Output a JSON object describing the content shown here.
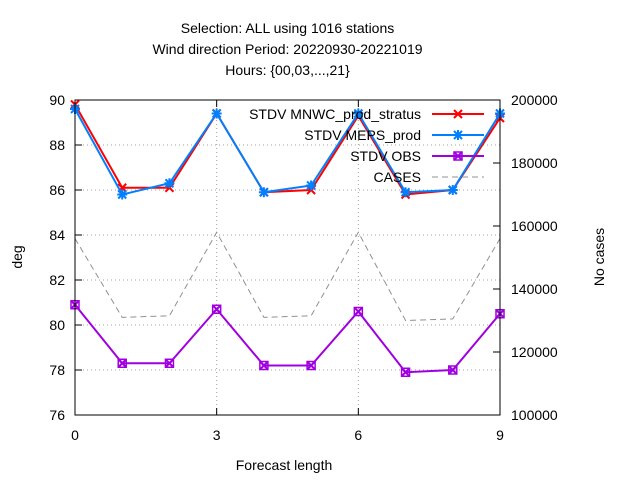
{
  "chart_data": {
    "type": "line",
    "title_lines": [
      "Selection: ALL using  1016 stations",
      "Wind direction    Period: 20220930-20221019",
      "Hours: {00,03,...,21}"
    ],
    "xlabel": "Forecast length",
    "ylabel": "deg",
    "y2label": "No cases",
    "x": [
      0,
      1,
      2,
      3,
      4,
      5,
      6,
      7,
      8,
      9
    ],
    "xlim": [
      0,
      9
    ],
    "xticks": [
      0,
      3,
      6,
      9
    ],
    "ylim": [
      76,
      90
    ],
    "yticks": [
      76,
      78,
      80,
      82,
      84,
      86,
      88,
      90
    ],
    "y2lim": [
      100000,
      200000
    ],
    "y2ticks": [
      100000,
      120000,
      140000,
      160000,
      180000,
      200000
    ],
    "grid": true,
    "legend_position": "top-right",
    "series": [
      {
        "name": "STDV MNWC_prod_stratus",
        "axis": "y1",
        "color": "#ff0000",
        "values": [
          89.8,
          86.1,
          86.1,
          89.4,
          85.9,
          86.0,
          89.3,
          85.8,
          86.0,
          89.2
        ]
      },
      {
        "name": "STDV MEPS_prod",
        "axis": "y1",
        "color": "#0080ff",
        "values": [
          89.6,
          85.8,
          86.3,
          89.4,
          85.9,
          86.2,
          89.4,
          85.9,
          86.0,
          89.4
        ]
      },
      {
        "name": "STDV OBS",
        "axis": "y1",
        "color": "#a000e0",
        "values": [
          80.9,
          78.3,
          78.3,
          80.7,
          78.2,
          78.2,
          80.6,
          77.9,
          78.0,
          80.5
        ]
      },
      {
        "name": "CASES",
        "axis": "y2",
        "color": "#909090",
        "dashed": true,
        "values": [
          156000,
          131000,
          131500,
          158000,
          131000,
          131500,
          158000,
          130000,
          130500,
          156000
        ]
      }
    ]
  }
}
